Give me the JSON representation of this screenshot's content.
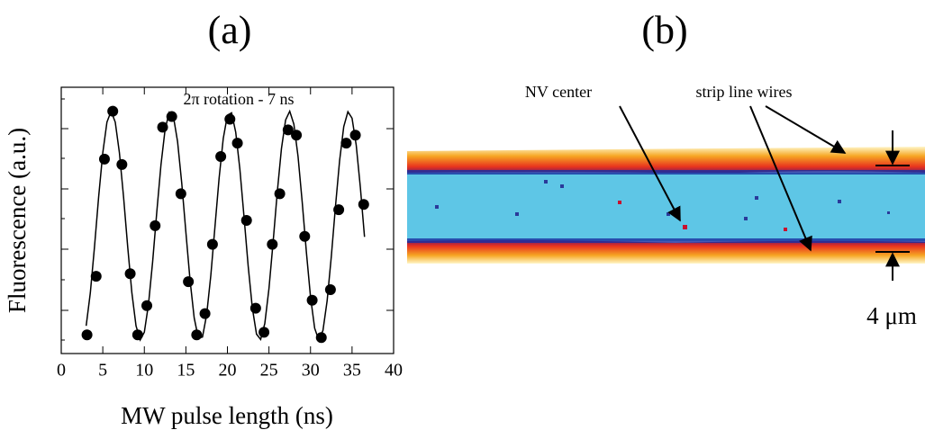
{
  "chart_data": {
    "type": "scatter",
    "panel_label": "(a)",
    "title": "2π rotation - 7 ns",
    "x_label": "MW pulse length (ns)",
    "y_label": "Fluorescence (a.u.)",
    "xlim": [
      0,
      40
    ],
    "xticks": [
      0,
      5,
      10,
      15,
      20,
      25,
      30,
      35,
      40
    ],
    "ylim": [
      0,
      1
    ],
    "x": [
      3.1,
      4.2,
      5.2,
      6.2,
      7.3,
      8.3,
      9.2,
      10.3,
      11.3,
      12.2,
      13.3,
      14.4,
      15.3,
      16.3,
      17.3,
      18.2,
      19.2,
      20.3,
      21.2,
      22.3,
      23.4,
      24.4,
      25.4,
      26.3,
      27.3,
      28.3,
      29.3,
      30.2,
      31.3,
      32.4,
      33.4,
      34.3,
      35.4,
      36.4
    ],
    "values": [
      0.07,
      0.29,
      0.73,
      0.91,
      0.71,
      0.3,
      0.07,
      0.18,
      0.48,
      0.85,
      0.89,
      0.6,
      0.27,
      0.07,
      0.15,
      0.41,
      0.74,
      0.88,
      0.79,
      0.5,
      0.17,
      0.08,
      0.41,
      0.6,
      0.84,
      0.82,
      0.44,
      0.2,
      0.06,
      0.24,
      0.54,
      0.79,
      0.82,
      0.56
    ],
    "color": "#000000",
    "fit": {
      "x": [
        3,
        3.5,
        4,
        4.5,
        5,
        5.5,
        6,
        6.5,
        7,
        7.5,
        8,
        8.5,
        9,
        9.5,
        10,
        10.5,
        11,
        11.5,
        12,
        12.5,
        13,
        13.5,
        14,
        14.5,
        15,
        15.5,
        16,
        16.5,
        17,
        17.5,
        18,
        18.5,
        19,
        19.5,
        20,
        20.5,
        21,
        21.5,
        22,
        22.5,
        23,
        23.5,
        24,
        24.5,
        25,
        25.5,
        26,
        26.5,
        27,
        27.5,
        28,
        28.5,
        29,
        29.5,
        30,
        30.5,
        31,
        31.5,
        32,
        32.5,
        33,
        33.5,
        34,
        34.5,
        35,
        35.5,
        36,
        36.5
      ],
      "values": [
        0.104,
        0.228,
        0.4,
        0.588,
        0.754,
        0.869,
        0.91,
        0.869,
        0.754,
        0.588,
        0.4,
        0.228,
        0.104,
        0.051,
        0.08,
        0.185,
        0.345,
        0.532,
        0.708,
        0.842,
        0.906,
        0.89,
        0.796,
        0.641,
        0.456,
        0.276,
        0.134,
        0.058,
        0.062,
        0.146,
        0.293,
        0.476,
        0.659,
        0.808,
        0.895,
        0.904,
        0.831,
        0.692,
        0.513,
        0.328,
        0.171,
        0.073,
        0.053,
        0.113,
        0.244,
        0.419,
        0.606,
        0.769,
        0.877,
        0.91,
        0.861,
        0.74,
        0.569,
        0.382,
        0.213,
        0.095,
        0.05,
        0.087,
        0.198,
        0.363,
        0.551,
        0.724,
        0.852,
        0.908,
        0.884,
        0.783,
        0.624,
        0.438
      ]
    }
  },
  "panel_b": {
    "panel_label": "(b)",
    "annotations": [
      "NV center",
      "strip line wires"
    ],
    "scale_bar": "4 μm"
  }
}
